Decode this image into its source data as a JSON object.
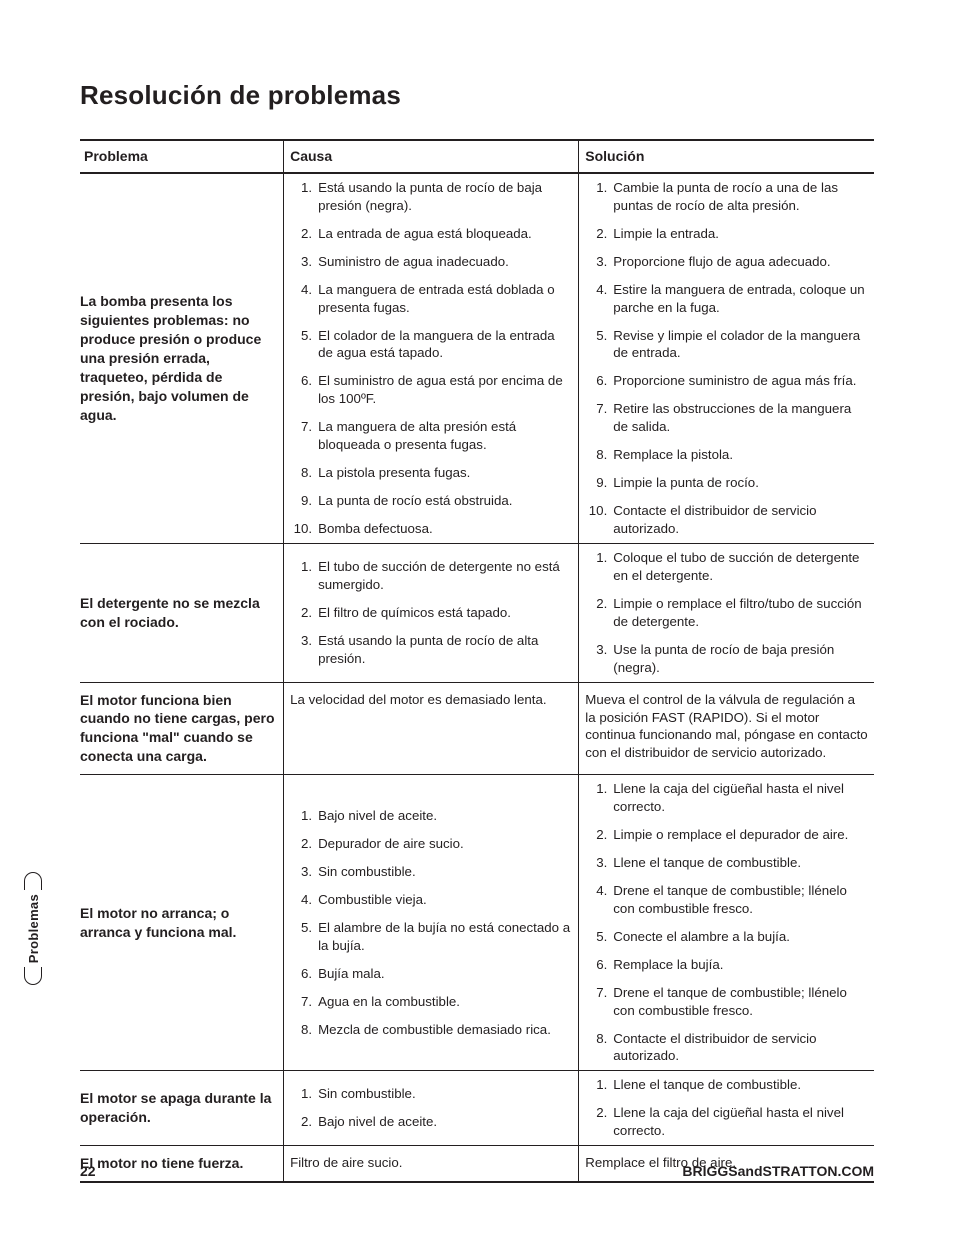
{
  "title": "Resolución de problemas",
  "table": {
    "columns": [
      "Problema",
      "Causa",
      "Solución"
    ],
    "rows": [
      {
        "problem": "La bomba presenta los siguientes problemas: no produce presión o produce una presión errada, traqueteo, pérdida de presión, bajo volumen de agua.",
        "causes": [
          "Está usando la punta de rocío de baja presión (negra).",
          "La entrada de agua está bloqueada.",
          "Suministro de agua inadecuado.",
          "La manguera de entrada está doblada o presenta fugas.",
          "El colador de la manguera de la entrada de agua está tapado.",
          "El suministro de agua está por encima de los 100ºF.",
          "La manguera de alta presión está bloqueada o presenta fugas.",
          "La pistola presenta fugas.",
          "La punta de rocío está obstruida.",
          "Bomba defectuosa."
        ],
        "solutions": [
          "Cambie la punta de rocío a una de las puntas de rocío de alta presión.",
          "Limpie la entrada.",
          "Proporcione flujo de agua adecuado.",
          "Estire la manguera de entrada, coloque un parche en la fuga.",
          "Revise y limpie el colador de la manguera de entrada.",
          "Proporcione suministro de agua más fría.",
          "Retire las obstrucciones de la manguera de salida.",
          "Remplace la pistola.",
          "Limpie la punta de rocío.",
          "Contacte el distribuidor de servicio autorizado."
        ]
      },
      {
        "problem": "El detergente no se mezcla con el rociado.",
        "causes": [
          "El tubo de succión de detergente no está sumergido.",
          "El filtro de químicos está tapado.",
          "Está usando la punta de rocío de alta presión."
        ],
        "solutions": [
          "Coloque el tubo de succión de detergente en el detergente.",
          "Limpie o remplace el filtro/tubo de succión de detergente.",
          "Use la punta de rocío de baja presión (negra)."
        ]
      },
      {
        "problem": "El motor funciona bien cuando no tiene cargas, pero funciona \"mal\" cuando se conecta una carga.",
        "cause_plain": "La velocidad del motor es demasiado lenta.",
        "solution_plain": "Mueva el control de la válvula de regulación a la posición FAST (RAPIDO). Si el motor continua funcionando mal, póngase en contacto con el distribuidor de servicio autorizado."
      },
      {
        "problem": "El motor no arranca; o arranca y funciona mal.",
        "causes": [
          "Bajo nivel de aceite.",
          "Depurador de aire sucio.",
          "Sin combustible.",
          "Combustible vieja.",
          "El alambre de la bujía no está conectado a la bujía.",
          "Bujía mala.",
          "Agua en la combustible.",
          "Mezcla de combustible demasiado rica."
        ],
        "solutions": [
          "Llene la caja del cigüeñal hasta el nivel correcto.",
          "Limpie o remplace el depurador de aire.",
          "Llene el tanque de combustible.",
          "Drene el tanque de combustible; llénelo con combustible fresco.",
          "Conecte el alambre a la bujía.",
          "Remplace la bujía.",
          "Drene el tanque de combustible; llénelo con combustible fresco.",
          "Contacte el distribuidor de servicio autorizado."
        ]
      },
      {
        "problem": "El motor se apaga durante la operación.",
        "causes": [
          "Sin combustible.",
          "Bajo nivel de aceite."
        ],
        "solutions": [
          "Llene el tanque de combustible.",
          "Llene la caja del cigüeñal hasta el nivel correcto."
        ]
      },
      {
        "problem": "El motor no tiene fuerza.",
        "cause_plain": "Filtro de aire sucio.",
        "solution_plain": "Remplace el filtro de aire."
      }
    ]
  },
  "side_tab": "Problemas",
  "footer": {
    "page": "22",
    "site": "BRIGGSandSTRATTON.COM"
  }
}
